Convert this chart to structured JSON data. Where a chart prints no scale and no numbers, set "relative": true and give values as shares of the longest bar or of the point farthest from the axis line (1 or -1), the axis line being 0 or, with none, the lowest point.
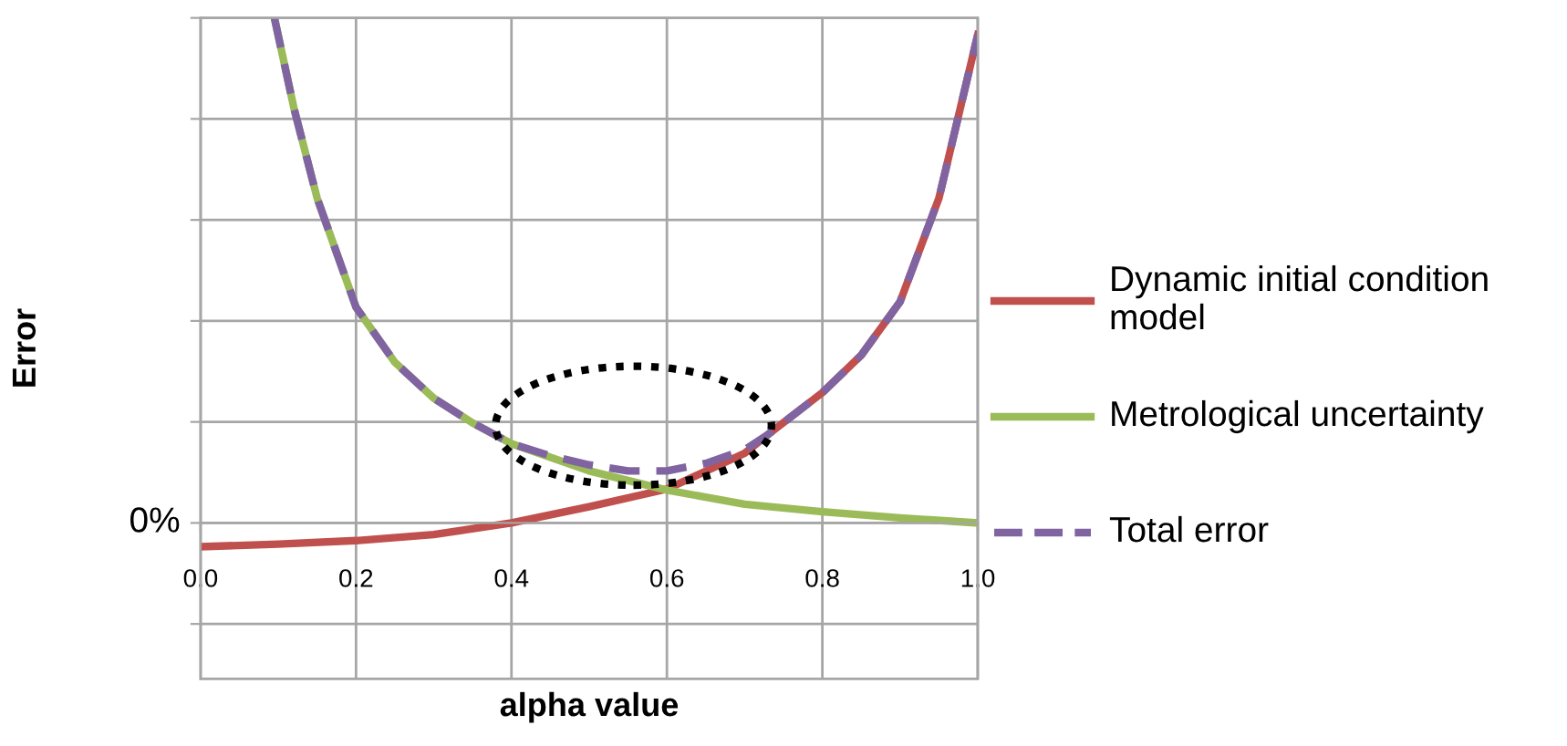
{
  "chart_data": {
    "type": "line",
    "xlabel": "alpha value",
    "ylabel": "Error",
    "relative": true,
    "xlim": [
      0,
      1
    ],
    "xticks": [
      {
        "value": 0,
        "label": "0.0"
      },
      {
        "value": 0.2,
        "label": "0.2"
      },
      {
        "value": 0.4,
        "label": "0.4"
      },
      {
        "value": 0.6,
        "label": "0.6"
      },
      {
        "value": 0.8,
        "label": "0.8"
      },
      {
        "value": 1,
        "label": "1.0"
      }
    ],
    "grid": true,
    "legend": "right",
    "marker": "none",
    "annotations": [
      "0%"
    ],
    "series": [
      {
        "name": "Dynamic initial condition model",
        "color": "#c0504d",
        "line_style": "solid",
        "x": [
          0,
          0.1,
          0.2,
          0.3,
          0.4,
          0.5,
          0.6,
          0.7,
          0.73,
          0.8,
          0.85,
          0.9,
          0.95,
          1.0
        ],
        "values": [
          -0.047,
          -0.042,
          -0.035,
          -0.023,
          0.0,
          0.032,
          0.067,
          0.138,
          0.175,
          0.258,
          0.332,
          0.438,
          0.643,
          0.967
        ]
      },
      {
        "name": "Metrological uncertainty",
        "color": "#9bbb59",
        "line_style": "solid",
        "x": [
          0.095,
          0.12,
          0.15,
          0.2,
          0.25,
          0.3,
          0.35,
          0.4,
          0.5,
          0.6,
          0.7,
          0.8,
          0.9,
          1.0
        ],
        "values": [
          1.0,
          0.822,
          0.643,
          0.427,
          0.318,
          0.247,
          0.198,
          0.157,
          0.103,
          0.065,
          0.037,
          0.022,
          0.01,
          0.0
        ]
      },
      {
        "name": "Total error",
        "color": "#8064a2",
        "line_style": "dashed",
        "x": [
          0.095,
          0.12,
          0.15,
          0.2,
          0.25,
          0.3,
          0.35,
          0.4,
          0.45,
          0.5,
          0.55,
          0.6,
          0.65,
          0.7,
          0.73,
          0.8,
          0.85,
          0.9,
          0.95,
          1.0
        ],
        "values": [
          1.0,
          0.822,
          0.643,
          0.427,
          0.318,
          0.247,
          0.198,
          0.157,
          0.133,
          0.115,
          0.103,
          0.103,
          0.118,
          0.145,
          0.175,
          0.258,
          0.332,
          0.438,
          0.643,
          0.967
        ]
      }
    ]
  }
}
